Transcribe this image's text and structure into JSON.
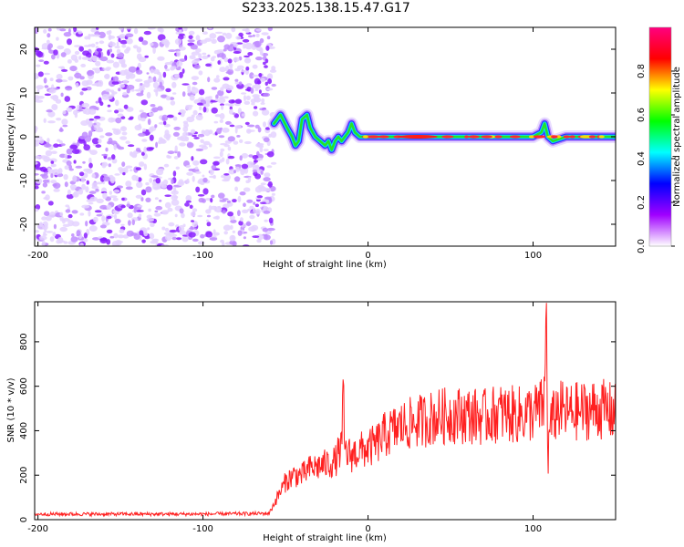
{
  "title": "S233.2025.138.15.47.G17",
  "chart_data": [
    {
      "type": "heatmap",
      "xlabel": "Height of straight line (km)",
      "ylabel": "Frequency (Hz)",
      "xlim": [
        -202,
        150
      ],
      "ylim": [
        -25,
        25
      ],
      "xticks": [
        -200,
        -100,
        0,
        100
      ],
      "yticks": [
        -20,
        -10,
        0,
        10,
        20
      ],
      "grid": false,
      "colorbar": {
        "label": "Normalized spectral amplitude",
        "range": [
          0,
          1
        ],
        "ticks": [
          0.0,
          0.2,
          0.4,
          0.6,
          0.8
        ],
        "colors": [
          "#ffffff",
          "#a000ff",
          "#0000ff",
          "#00ffff",
          "#00ff00",
          "#ffff00",
          "#ff0000",
          "#ff0080"
        ]
      },
      "regions": [
        {
          "x": [
            -202,
            -57
          ],
          "description_value": "noise",
          "amplitude": [
            0.05,
            0.3
          ]
        },
        {
          "x": [
            -57,
            150
          ],
          "center_frequency_hz": 0,
          "amplitude": [
            0.4,
            0.9
          ]
        }
      ],
      "trace": {
        "x": [
          -57,
          -53,
          -49,
          -46,
          -44,
          -42,
          -40,
          -37,
          -35,
          -32,
          -29,
          -26,
          -24,
          -22,
          -20,
          -18,
          -16,
          -14,
          -12,
          -10,
          -8,
          -5,
          0,
          10,
          30,
          60,
          80,
          100,
          105,
          107,
          109,
          112,
          120,
          150
        ],
        "y": [
          3,
          5,
          2,
          0,
          -2,
          -1,
          4,
          5,
          2,
          0,
          -1,
          -2,
          -1,
          -3,
          -1,
          0,
          -1,
          0,
          1,
          3,
          1,
          0,
          0,
          0,
          0,
          0,
          0,
          0,
          1,
          3,
          0,
          -1,
          0,
          0
        ]
      }
    },
    {
      "type": "line",
      "xlabel": "Height of straight line (km)",
      "ylabel": "SNR (10 * v/v)",
      "xlim": [
        -202,
        150
      ],
      "ylim": [
        0,
        980
      ],
      "xticks": [
        -200,
        -100,
        0,
        100
      ],
      "yticks": [
        0,
        200,
        400,
        600,
        800
      ],
      "grid": false,
      "color": "#ff0000",
      "series": [
        {
          "x": [
            -202,
            -150,
            -100,
            -60,
            -55,
            -50,
            -45,
            -40,
            -35,
            -30,
            -25,
            -20,
            -16,
            -15,
            -14,
            -10,
            -5,
            0,
            5,
            10,
            20,
            30,
            40,
            50,
            60,
            70,
            80,
            90,
            100,
            105,
            107,
            108,
            109,
            110,
            115,
            120,
            130,
            140,
            150
          ],
          "y": [
            25,
            25,
            25,
            28,
            100,
            170,
            200,
            200,
            230,
            240,
            250,
            260,
            330,
            540,
            300,
            290,
            310,
            320,
            340,
            380,
            420,
            440,
            460,
            470,
            470,
            460,
            480,
            470,
            480,
            500,
            540,
            970,
            240,
            420,
            500,
            480,
            490,
            500,
            480
          ]
        }
      ]
    }
  ]
}
